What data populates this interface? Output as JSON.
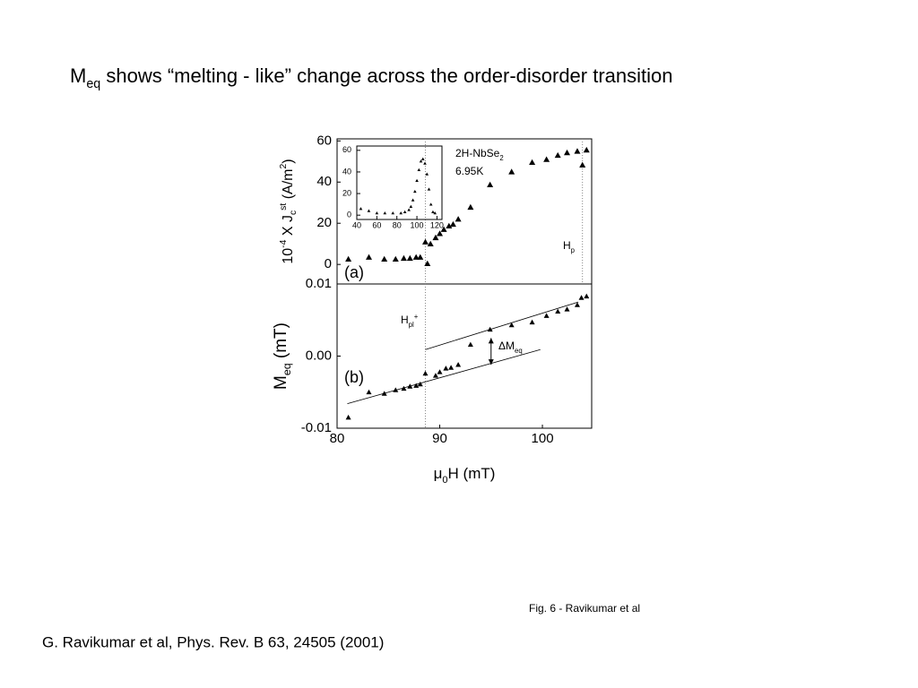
{
  "slide": {
    "title": [
      {
        "t": "M"
      },
      {
        "t": "eq",
        "s": "sub"
      },
      {
        "t": " shows “melting - like” change across the order-disorder transition"
      }
    ],
    "caption": "Fig. 6 - Ravikumar et al",
    "citation": "G. Ravikumar et al, Phys. Rev. B 63, 24505 (2001)"
  },
  "chart_data": [
    {
      "type": "scatter",
      "panel_label": "(a)",
      "ylabel": [
        {
          "t": "10"
        },
        {
          "t": "-4",
          "s": "sup"
        },
        {
          "t": " X J"
        },
        {
          "t": "c",
          "s": "sub"
        },
        {
          "t": "st",
          "s": "sup"
        },
        {
          "t": " (A/m"
        },
        {
          "t": "2",
          "s": "sup"
        },
        {
          "t": ")"
        }
      ],
      "sample": [
        {
          "t": "2H-NbSe"
        },
        {
          "t": "2",
          "s": "sub"
        }
      ],
      "temperature": "6.95K",
      "hp_label": [
        {
          "t": "H"
        },
        {
          "t": "p",
          "s": "sub"
        }
      ],
      "x": [
        81.1,
        83.1,
        84.6,
        85.7,
        86.5,
        87.1,
        87.7,
        88.1,
        88.6,
        88.8,
        89.1,
        89.6,
        90.0,
        90.4,
        90.9,
        91.3,
        91.8,
        93.0,
        94.9,
        97.0,
        99.0,
        100.4,
        101.5,
        102.4,
        103.4,
        104.3,
        103.9
      ],
      "values": [
        2.6,
        3.5,
        2.6,
        2.6,
        3.0,
        3.0,
        3.5,
        3.5,
        10.9,
        0.4,
        10,
        13,
        15,
        17,
        18.7,
        19.5,
        22,
        27.8,
        38.7,
        45,
        49.6,
        51,
        53,
        54.3,
        55,
        55.6,
        48.3
      ],
      "color": "#000000",
      "guide_x": [
        88.6,
        103.9
      ],
      "xlim": [
        80,
        104.8
      ],
      "ylim": [
        -9.5,
        61
      ],
      "yticks": [
        0,
        20,
        40,
        60
      ]
    },
    {
      "type": "scatter",
      "x": [
        44,
        52,
        60,
        68,
        76,
        84,
        88,
        92,
        94,
        96,
        98,
        100,
        102,
        104,
        106,
        108,
        110,
        112,
        114,
        116,
        118
      ],
      "values": [
        6,
        4,
        2,
        2,
        2,
        2,
        3,
        5,
        8,
        14,
        22,
        32,
        42,
        50,
        52,
        48,
        38,
        24,
        10,
        3,
        2
      ],
      "color": "#000000",
      "xlim": [
        40,
        125
      ],
      "ylim": [
        -4,
        64
      ],
      "xticks": [
        40,
        60,
        80,
        100,
        120
      ],
      "yticks": [
        0,
        20,
        40,
        60
      ]
    },
    {
      "type": "scatter",
      "panel_label": "(b)",
      "ylabel": [
        {
          "t": "M"
        },
        {
          "t": "eq",
          "s": "sub"
        },
        {
          "t": " (mT)"
        }
      ],
      "xlabel": [
        {
          "t": "μ"
        },
        {
          "t": "0",
          "s": "sub"
        },
        {
          "t": "H (mT)"
        }
      ],
      "hpl_label": [
        {
          "t": "H"
        },
        {
          "t": "pl",
          "s": "sub"
        },
        {
          "t": "+",
          "s": "sup"
        }
      ],
      "delta_label": [
        {
          "t": "ΔM"
        },
        {
          "t": "eq",
          "s": "sub"
        }
      ],
      "x": [
        81.1,
        83.1,
        84.6,
        85.7,
        86.5,
        87.1,
        87.7,
        88.1,
        88.6,
        89.6,
        90.0,
        90.6,
        91.1,
        91.8,
        93.0,
        94.9,
        97.0,
        99.0,
        100.4,
        101.5,
        102.4,
        103.4,
        103.8,
        104.3
      ],
      "values": [
        -0.0085,
        -0.005,
        -0.0052,
        -0.0047,
        -0.0045,
        -0.0042,
        -0.0041,
        -0.0039,
        -0.0024,
        -0.0027,
        -0.0022,
        -0.0017,
        -0.0016,
        -0.0012,
        0.0016,
        0.0037,
        0.0043,
        0.0047,
        0.0056,
        0.0062,
        0.0065,
        0.0071,
        0.0081,
        0.0083
      ],
      "color": "#000000",
      "fit_lines": [
        {
          "x": [
            81,
            99.8
          ],
          "values": [
            -0.0066,
            0.0009
          ]
        },
        {
          "x": [
            88.6,
            103.5
          ],
          "values": [
            0.0009,
            0.0075
          ]
        }
      ],
      "delta_arrow": {
        "x": 95,
        "values": [
          0.0025,
          -0.0012
        ]
      },
      "guide_x": [
        88.6
      ],
      "xlim": [
        80,
        104.8
      ],
      "ylim": [
        -0.01,
        0.01
      ],
      "xticks": [
        80,
        90,
        100
      ],
      "yticks": [
        -0.01,
        {
          "value": 0,
          "label": "0.00"
        },
        0.01
      ]
    }
  ]
}
